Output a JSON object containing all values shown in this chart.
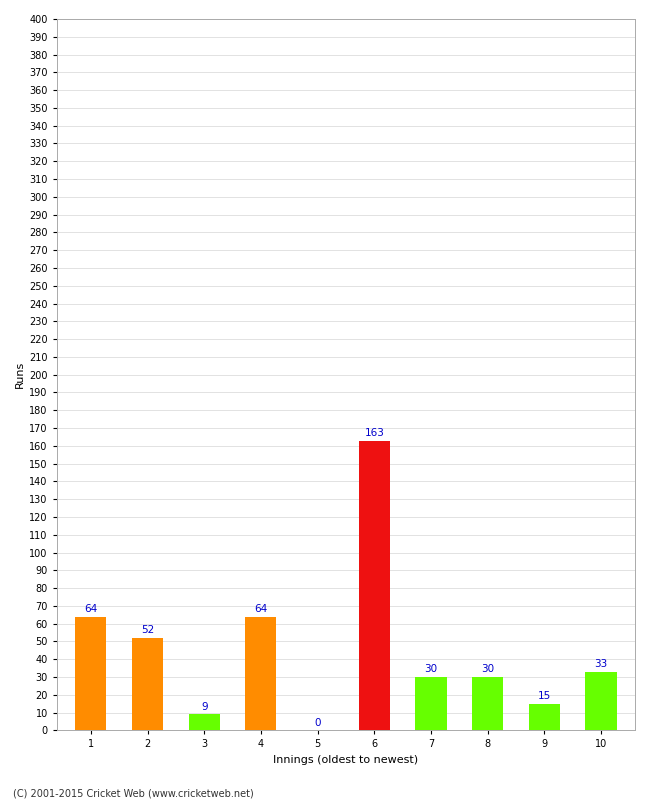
{
  "xlabel": "Innings (oldest to newest)",
  "ylabel": "Runs",
  "categories": [
    "1",
    "2",
    "3",
    "4",
    "5",
    "6",
    "7",
    "8",
    "9",
    "10"
  ],
  "values": [
    64,
    52,
    9,
    64,
    0,
    163,
    30,
    30,
    15,
    33
  ],
  "bar_colors": [
    "#ff8c00",
    "#ff8c00",
    "#66ff00",
    "#ff8c00",
    "#66ff00",
    "#ee1111",
    "#66ff00",
    "#66ff00",
    "#66ff00",
    "#66ff00"
  ],
  "label_color": "#0000cc",
  "ylim": [
    0,
    400
  ],
  "yticks": [
    0,
    10,
    20,
    30,
    40,
    50,
    60,
    70,
    80,
    90,
    100,
    110,
    120,
    130,
    140,
    150,
    160,
    170,
    180,
    190,
    200,
    210,
    220,
    230,
    240,
    250,
    260,
    270,
    280,
    290,
    300,
    310,
    320,
    330,
    340,
    350,
    360,
    370,
    380,
    390,
    400
  ],
  "background_color": "#ffffff",
  "grid_color": "#dddddd",
  "footer": "(C) 2001-2015 Cricket Web (www.cricketweb.net)",
  "axis_label_fontsize": 8,
  "tick_fontsize": 7,
  "bar_label_fontsize": 7.5,
  "bar_width": 0.55
}
